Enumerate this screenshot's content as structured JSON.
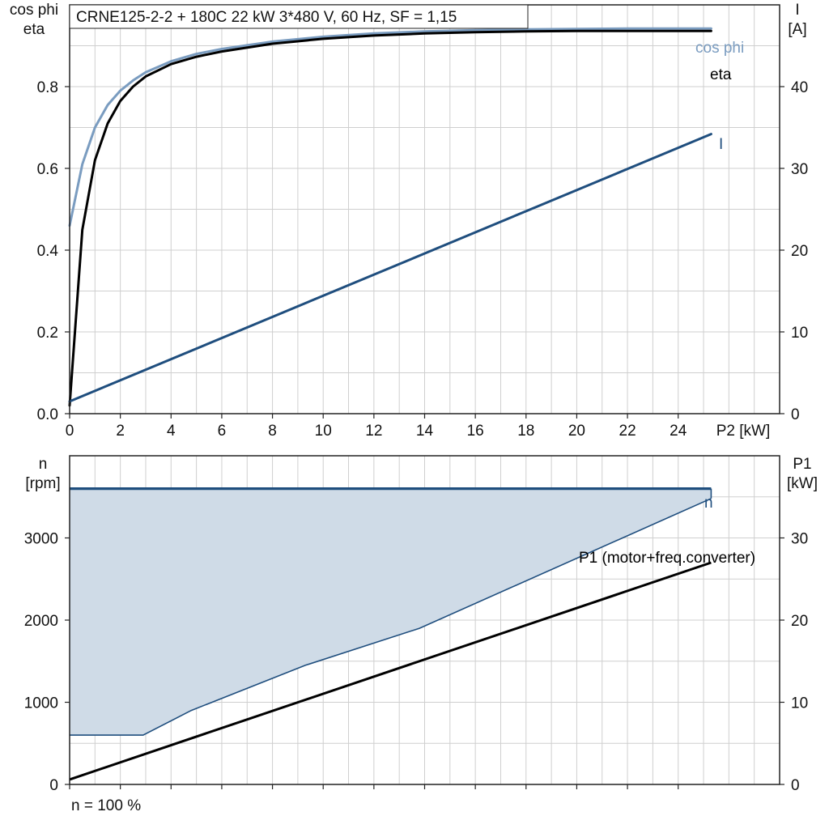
{
  "title": "CRNE125-2-2 + 180C   22 kW   3*480 V, 60 Hz, SF = 1,15",
  "footnote": "n = 100 %",
  "colors": {
    "cos_phi": "#7a9cc0",
    "eta": "#000000",
    "current": "#1f4e7e",
    "speed": "#1f4e7e",
    "speed_band_fill": "#cfdbe7",
    "p1": "#000000",
    "grid": "#cfcfcf"
  },
  "chart_data": [
    {
      "type": "line",
      "x_label": "P2 [kW]",
      "x_range": [
        0,
        28
      ],
      "x_ticks": [
        0,
        2,
        4,
        6,
        8,
        10,
        12,
        14,
        16,
        18,
        20,
        22,
        24
      ],
      "x_tick_labels": [
        "0",
        "2",
        "4",
        "6",
        "8",
        "10",
        "12",
        "14",
        "16",
        "18",
        "20",
        "22",
        "24"
      ],
      "y_left_label_lines": [
        "cos phi",
        "eta"
      ],
      "y_left_range": [
        0,
        1.0
      ],
      "y_left_ticks": [
        0,
        0.2,
        0.4,
        0.6,
        0.8
      ],
      "y_left_tick_labels": [
        "0.0",
        "0.2",
        "0.4",
        "0.6",
        "0.8"
      ],
      "y_right_label_lines": [
        "I",
        "[A]"
      ],
      "y_right_range": [
        0,
        50
      ],
      "y_right_ticks": [
        0,
        10,
        20,
        30,
        40
      ],
      "y_right_tick_labels": [
        "0",
        "10",
        "20",
        "30",
        "40"
      ],
      "grid": true,
      "series": [
        {
          "name": "cos phi",
          "axis": "left",
          "x": [
            0,
            0.5,
            1,
            1.5,
            2,
            2.5,
            3,
            4,
            5,
            6,
            8,
            10,
            12,
            14,
            16,
            18,
            20,
            22,
            24,
            25.3
          ],
          "y": [
            0.46,
            0.61,
            0.7,
            0.755,
            0.79,
            0.815,
            0.835,
            0.862,
            0.88,
            0.892,
            0.91,
            0.922,
            0.93,
            0.935,
            0.938,
            0.94,
            0.941,
            0.942,
            0.942,
            0.942
          ]
        },
        {
          "name": "eta",
          "axis": "left",
          "x": [
            0,
            0.5,
            1,
            1.5,
            2,
            2.5,
            3,
            4,
            5,
            6,
            8,
            10,
            12,
            14,
            16,
            18,
            20,
            22,
            24,
            25.3
          ],
          "y": [
            0.02,
            0.45,
            0.62,
            0.71,
            0.765,
            0.8,
            0.825,
            0.855,
            0.873,
            0.886,
            0.905,
            0.917,
            0.925,
            0.93,
            0.933,
            0.935,
            0.936,
            0.936,
            0.936,
            0.936
          ]
        },
        {
          "name": "I",
          "axis": "right",
          "x": [
            0,
            25.3
          ],
          "y": [
            1.5,
            34.2
          ]
        }
      ]
    },
    {
      "type": "area",
      "x_range": [
        0,
        28
      ],
      "x_ticks": [
        0,
        2,
        4,
        6,
        8,
        10,
        12,
        14,
        16,
        18,
        20,
        22,
        24
      ],
      "y_left_label_lines": [
        "n",
        "[rpm]"
      ],
      "y_left_range": [
        0,
        4000
      ],
      "y_left_ticks": [
        0,
        1000,
        2000,
        3000
      ],
      "y_left_tick_labels": [
        "0",
        "1000",
        "2000",
        "3000"
      ],
      "y_right_label_lines": [
        "P1",
        "[kW]"
      ],
      "y_right_range": [
        0,
        40
      ],
      "y_right_ticks": [
        0,
        10,
        20,
        30
      ],
      "y_right_tick_labels": [
        "0",
        "10",
        "20",
        "30"
      ],
      "grid": true,
      "series": [
        {
          "name": "n",
          "axis": "left",
          "x": [
            0,
            25.3
          ],
          "y": [
            3600,
            3600
          ]
        },
        {
          "name": "",
          "axis": "left",
          "role": "band_lower",
          "x": [
            0,
            2.9,
            4.8,
            9.3,
            13.8,
            25.3
          ],
          "y": [
            600,
            600,
            900,
            1450,
            1900,
            3480
          ]
        },
        {
          "name": "P1 (motor+freq.converter)",
          "axis": "right",
          "x": [
            0,
            25.3
          ],
          "y": [
            0.6,
            27.0
          ]
        }
      ]
    }
  ]
}
